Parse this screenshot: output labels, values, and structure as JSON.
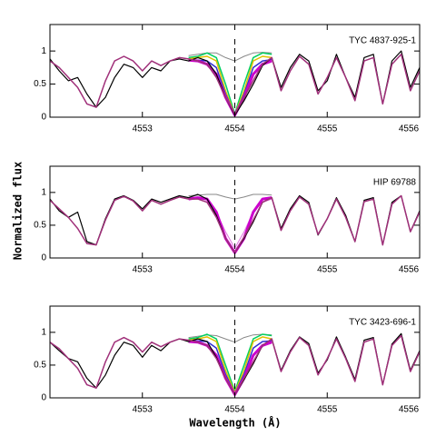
{
  "xlabel": "Wavelength (Å)",
  "ylabel": "Normalized flux",
  "chart_data": [
    {
      "type": "line",
      "annotation": "TYC 4837-925-1",
      "x": [
        4552.0,
        4552.1,
        4552.2,
        4552.3,
        4552.4,
        4552.5,
        4552.6,
        4552.7,
        4552.8,
        4552.9,
        4553.0,
        4553.1,
        4553.2,
        4553.3,
        4553.4,
        4553.5,
        4553.6,
        4553.7,
        4553.8,
        4553.9,
        4554.0,
        4554.1,
        4554.2,
        4554.3,
        4554.4,
        4554.5,
        4554.6,
        4554.7,
        4554.8,
        4554.9,
        4555.0,
        4555.1,
        4555.2,
        4555.3,
        4555.4,
        4555.5,
        4555.6,
        4555.7,
        4555.8,
        4555.9,
        4556.0
      ],
      "xlim": [
        4552.0,
        4556.0
      ],
      "xticks": [
        4553,
        4554,
        4555,
        4556
      ],
      "ylim": [
        0,
        1.4
      ],
      "yticks": [
        0,
        0.5,
        1
      ],
      "vline": 4554,
      "series": [
        {
          "color": "#888888",
          "width": 1,
          "values": [
            null,
            null,
            null,
            null,
            null,
            null,
            null,
            null,
            null,
            null,
            null,
            null,
            null,
            null,
            null,
            0.93,
            0.95,
            0.97,
            0.97,
            0.9,
            0.85,
            0.92,
            0.97,
            0.98,
            0.97,
            null,
            null,
            null,
            null,
            null,
            null,
            null,
            null,
            null,
            null,
            null,
            null,
            null,
            null,
            null,
            null
          ]
        },
        {
          "color": "#00d060",
          "width": 1.5,
          "values": [
            null,
            null,
            null,
            null,
            null,
            null,
            null,
            null,
            null,
            null,
            null,
            null,
            null,
            null,
            null,
            0.9,
            0.92,
            0.97,
            0.9,
            0.5,
            0.05,
            0.5,
            0.9,
            0.97,
            0.95,
            null,
            null,
            null,
            null,
            null,
            null,
            null,
            null,
            null,
            null,
            null,
            null,
            null,
            null,
            null,
            null
          ]
        },
        {
          "color": "#e0c000",
          "width": 1.5,
          "values": [
            null,
            null,
            null,
            null,
            null,
            null,
            null,
            null,
            null,
            null,
            null,
            null,
            null,
            null,
            null,
            0.88,
            0.9,
            0.92,
            0.85,
            0.4,
            0.04,
            0.4,
            0.85,
            0.92,
            0.9,
            null,
            null,
            null,
            null,
            null,
            null,
            null,
            null,
            null,
            null,
            null,
            null,
            null,
            null,
            null,
            null
          ]
        },
        {
          "color": "#3030d0",
          "width": 1.5,
          "values": [
            null,
            null,
            null,
            null,
            null,
            null,
            null,
            null,
            null,
            null,
            null,
            null,
            null,
            null,
            null,
            0.87,
            0.86,
            0.85,
            0.75,
            0.35,
            0.03,
            0.35,
            0.75,
            0.85,
            0.87,
            null,
            null,
            null,
            null,
            null,
            null,
            null,
            null,
            null,
            null,
            null,
            null,
            null,
            null,
            null,
            null
          ]
        },
        {
          "color": "#cc00cc",
          "width": 3,
          "values": [
            null,
            null,
            null,
            null,
            null,
            null,
            null,
            null,
            null,
            null,
            null,
            null,
            null,
            null,
            null,
            0.86,
            0.85,
            0.8,
            0.65,
            0.3,
            0.03,
            0.3,
            0.65,
            0.8,
            0.85,
            null,
            null,
            null,
            null,
            null,
            null,
            null,
            null,
            null,
            null,
            null,
            null,
            null,
            null,
            null,
            null
          ]
        },
        {
          "color": "#000000",
          "width": 1.2,
          "values": [
            0.88,
            0.7,
            0.55,
            0.6,
            0.35,
            0.15,
            0.3,
            0.6,
            0.8,
            0.75,
            0.6,
            0.75,
            0.7,
            0.85,
            0.88,
            0.85,
            0.9,
            0.85,
            0.65,
            0.3,
            0.03,
            0.25,
            0.5,
            0.78,
            0.9,
            0.45,
            0.75,
            0.95,
            0.85,
            0.4,
            0.55,
            0.95,
            0.6,
            0.3,
            0.9,
            0.95,
            0.2,
            0.85,
            1.0,
            0.45,
            0.75
          ]
        },
        {
          "color": "#a0307a",
          "width": 1.5,
          "values": [
            0.85,
            0.75,
            0.6,
            0.45,
            0.2,
            0.15,
            0.55,
            0.85,
            0.92,
            0.85,
            0.7,
            0.85,
            0.78,
            0.85,
            0.9,
            0.88,
            0.85,
            0.8,
            0.6,
            0.3,
            0.05,
            0.3,
            0.55,
            0.8,
            0.9,
            0.4,
            0.7,
            0.92,
            0.8,
            0.35,
            0.6,
            0.9,
            0.6,
            0.25,
            0.85,
            0.9,
            0.2,
            0.8,
            0.95,
            0.4,
            0.7
          ]
        }
      ]
    },
    {
      "type": "line",
      "annotation": "HIP 69788",
      "x": [
        4552.0,
        4552.1,
        4552.2,
        4552.3,
        4552.4,
        4552.5,
        4552.6,
        4552.7,
        4552.8,
        4552.9,
        4553.0,
        4553.1,
        4553.2,
        4553.3,
        4553.4,
        4553.5,
        4553.6,
        4553.7,
        4553.8,
        4553.9,
        4554.0,
        4554.1,
        4554.2,
        4554.3,
        4554.4,
        4554.5,
        4554.6,
        4554.7,
        4554.8,
        4554.9,
        4555.0,
        4555.1,
        4555.2,
        4555.3,
        4555.4,
        4555.5,
        4555.6,
        4555.7,
        4555.8,
        4555.9,
        4556.0
      ],
      "xlim": [
        4552.0,
        4556.0
      ],
      "xticks": [
        4553,
        4554,
        4555,
        4556
      ],
      "ylim": [
        0,
        1.4
      ],
      "yticks": [
        0,
        0.5,
        1
      ],
      "vline": 4554,
      "series": [
        {
          "color": "#888888",
          "width": 1,
          "values": [
            null,
            null,
            null,
            null,
            null,
            null,
            null,
            null,
            null,
            null,
            null,
            null,
            null,
            null,
            null,
            0.95,
            0.96,
            0.97,
            0.97,
            0.93,
            0.9,
            0.93,
            0.97,
            0.97,
            0.96,
            null,
            null,
            null,
            null,
            null,
            null,
            null,
            null,
            null,
            null,
            null,
            null,
            null,
            null,
            null,
            null
          ]
        },
        {
          "color": "#e070e0",
          "width": 1,
          "values": [
            null,
            null,
            null,
            null,
            null,
            null,
            null,
            null,
            null,
            null,
            null,
            null,
            null,
            null,
            null,
            0.92,
            0.9,
            0.85,
            0.7,
            0.4,
            0.15,
            0.4,
            0.7,
            0.85,
            0.9,
            null,
            null,
            null,
            null,
            null,
            null,
            null,
            null,
            null,
            null,
            null,
            null,
            null,
            null,
            null,
            null
          ]
        },
        {
          "color": "#cc00cc",
          "width": 3,
          "values": [
            null,
            null,
            null,
            null,
            null,
            null,
            null,
            null,
            null,
            null,
            null,
            null,
            null,
            null,
            null,
            0.9,
            0.92,
            0.9,
            0.7,
            0.3,
            0.08,
            0.3,
            0.7,
            0.9,
            0.92,
            null,
            null,
            null,
            null,
            null,
            null,
            null,
            null,
            null,
            null,
            null,
            null,
            null,
            null,
            null,
            null
          ]
        },
        {
          "color": "#000000",
          "width": 1.2,
          "values": [
            0.9,
            0.72,
            0.62,
            0.7,
            0.25,
            0.2,
            0.6,
            0.9,
            0.95,
            0.88,
            0.75,
            0.9,
            0.85,
            0.9,
            0.95,
            0.92,
            0.97,
            0.9,
            0.65,
            0.3,
            0.08,
            0.3,
            0.55,
            0.85,
            0.92,
            0.45,
            0.75,
            0.95,
            0.85,
            0.35,
            0.6,
            0.92,
            0.65,
            0.25,
            0.88,
            0.92,
            0.2,
            0.85,
            0.95,
            0.4,
            0.72
          ]
        },
        {
          "color": "#a0307a",
          "width": 1.5,
          "values": [
            0.88,
            0.75,
            0.62,
            0.45,
            0.22,
            0.2,
            0.58,
            0.88,
            0.94,
            0.87,
            0.72,
            0.88,
            0.82,
            0.88,
            0.93,
            0.9,
            0.9,
            0.85,
            0.62,
            0.3,
            0.08,
            0.32,
            0.58,
            0.85,
            0.92,
            0.42,
            0.72,
            0.93,
            0.82,
            0.36,
            0.6,
            0.9,
            0.62,
            0.25,
            0.86,
            0.9,
            0.2,
            0.82,
            0.95,
            0.4,
            0.7
          ]
        }
      ]
    },
    {
      "type": "line",
      "annotation": "TYC 3423-696-1",
      "x": [
        4552.0,
        4552.1,
        4552.2,
        4552.3,
        4552.4,
        4552.5,
        4552.6,
        4552.7,
        4552.8,
        4552.9,
        4553.0,
        4553.1,
        4553.2,
        4553.3,
        4553.4,
        4553.5,
        4553.6,
        4553.7,
        4553.8,
        4553.9,
        4554.0,
        4554.1,
        4554.2,
        4554.3,
        4554.4,
        4554.5,
        4554.6,
        4554.7,
        4554.8,
        4554.9,
        4555.0,
        4555.1,
        4555.2,
        4555.3,
        4555.4,
        4555.5,
        4555.6,
        4555.7,
        4555.8,
        4555.9,
        4556.0
      ],
      "xlim": [
        4552.0,
        4556.0
      ],
      "xticks": [
        4553,
        4554,
        4555,
        4556
      ],
      "ylim": [
        0,
        1.4
      ],
      "yticks": [
        0,
        0.5,
        1
      ],
      "vline": 4554,
      "series": [
        {
          "color": "#888888",
          "width": 1,
          "values": [
            null,
            null,
            null,
            null,
            null,
            null,
            null,
            null,
            null,
            null,
            null,
            null,
            null,
            null,
            null,
            0.92,
            0.94,
            0.96,
            0.95,
            0.9,
            0.85,
            0.92,
            0.96,
            0.97,
            0.96,
            null,
            null,
            null,
            null,
            null,
            null,
            null,
            null,
            null,
            null,
            null,
            null,
            null,
            null,
            null,
            null
          ]
        },
        {
          "color": "#00d060",
          "width": 1.5,
          "values": [
            null,
            null,
            null,
            null,
            null,
            null,
            null,
            null,
            null,
            null,
            null,
            null,
            null,
            null,
            null,
            0.9,
            0.92,
            0.97,
            0.9,
            0.5,
            0.1,
            0.5,
            0.9,
            0.97,
            0.95,
            null,
            null,
            null,
            null,
            null,
            null,
            null,
            null,
            null,
            null,
            null,
            null,
            null,
            null,
            null,
            null
          ]
        },
        {
          "color": "#e0c000",
          "width": 1.5,
          "values": [
            null,
            null,
            null,
            null,
            null,
            null,
            null,
            null,
            null,
            null,
            null,
            null,
            null,
            null,
            null,
            0.88,
            0.9,
            0.93,
            0.86,
            0.42,
            0.08,
            0.42,
            0.86,
            0.93,
            0.9,
            null,
            null,
            null,
            null,
            null,
            null,
            null,
            null,
            null,
            null,
            null,
            null,
            null,
            null,
            null,
            null
          ]
        },
        {
          "color": "#3030d0",
          "width": 1.5,
          "values": [
            null,
            null,
            null,
            null,
            null,
            null,
            null,
            null,
            null,
            null,
            null,
            null,
            null,
            null,
            null,
            0.87,
            0.87,
            0.86,
            0.76,
            0.36,
            0.06,
            0.36,
            0.76,
            0.86,
            0.87,
            null,
            null,
            null,
            null,
            null,
            null,
            null,
            null,
            null,
            null,
            null,
            null,
            null,
            null,
            null,
            null
          ]
        },
        {
          "color": "#cc00cc",
          "width": 3,
          "values": [
            null,
            null,
            null,
            null,
            null,
            null,
            null,
            null,
            null,
            null,
            null,
            null,
            null,
            null,
            null,
            0.86,
            0.85,
            0.8,
            0.65,
            0.3,
            0.05,
            0.3,
            0.65,
            0.8,
            0.85,
            null,
            null,
            null,
            null,
            null,
            null,
            null,
            null,
            null,
            null,
            null,
            null,
            null,
            null,
            null,
            null
          ]
        },
        {
          "color": "#000000",
          "width": 1.2,
          "values": [
            0.85,
            0.72,
            0.6,
            0.55,
            0.3,
            0.15,
            0.35,
            0.65,
            0.85,
            0.8,
            0.62,
            0.8,
            0.72,
            0.85,
            0.9,
            0.86,
            0.9,
            0.86,
            0.62,
            0.3,
            0.05,
            0.28,
            0.52,
            0.8,
            0.9,
            0.42,
            0.72,
            0.93,
            0.83,
            0.38,
            0.58,
            0.93,
            0.62,
            0.28,
            0.88,
            0.92,
            0.2,
            0.82,
            0.98,
            0.42,
            0.72
          ]
        },
        {
          "color": "#a0307a",
          "width": 1.5,
          "values": [
            0.85,
            0.75,
            0.6,
            0.45,
            0.2,
            0.15,
            0.55,
            0.85,
            0.92,
            0.85,
            0.7,
            0.85,
            0.78,
            0.85,
            0.9,
            0.88,
            0.85,
            0.8,
            0.6,
            0.3,
            0.05,
            0.3,
            0.55,
            0.8,
            0.9,
            0.4,
            0.7,
            0.92,
            0.8,
            0.35,
            0.6,
            0.9,
            0.6,
            0.25,
            0.85,
            0.9,
            0.2,
            0.8,
            0.95,
            0.4,
            0.7
          ]
        }
      ]
    }
  ]
}
